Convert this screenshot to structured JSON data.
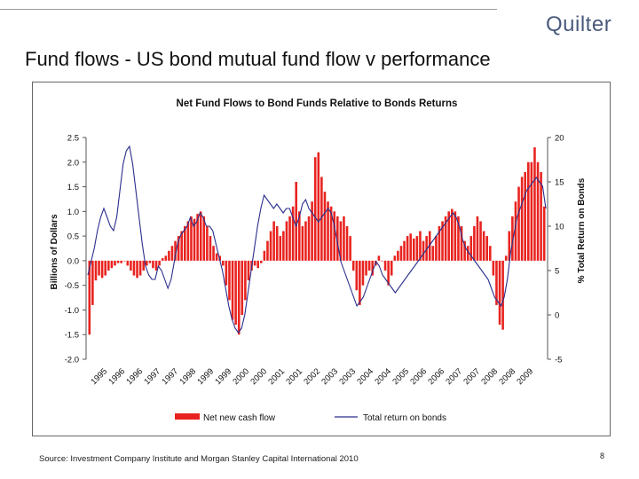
{
  "brand": {
    "name": "Quilter"
  },
  "slide": {
    "title": "Fund flows - US bond mutual fund flow v performance",
    "source": "Source: Investment Company Institute and Morgan Stanley Capital International 2010",
    "page_number": "8"
  },
  "colors": {
    "bars": "#e8231f",
    "line": "#2b2f8c"
  },
  "chart_data": {
    "type": "bar+line",
    "title": "Net Fund Flows to Bond Funds Relative to Bonds Returns",
    "ylabel_left": "Billions of Dollars",
    "ylabel_right": "% Total Return on Bonds",
    "ylim_left": [
      -2.0,
      2.5
    ],
    "ylim_right": [
      -5,
      20
    ],
    "yticks_left": [
      "2.5",
      "2.0",
      "1.5",
      "1.0",
      "0.5",
      "0.0",
      "-0.5",
      "-1.0",
      "-1.5",
      "-2.0"
    ],
    "yticks_right": [
      "20",
      "15",
      "10",
      "5",
      "0",
      "-5"
    ],
    "xtick_labels": [
      "1995",
      "1996",
      "1996",
      "1997",
      "1997",
      "1998",
      "1999",
      "1999",
      "2000",
      "2000",
      "2001",
      "2001",
      "2002",
      "2003",
      "2003",
      "2004",
      "2004",
      "2005",
      "2006",
      "2006",
      "2007",
      "2007",
      "2008",
      "2008",
      "2009"
    ],
    "grid": false,
    "legend_position": "bottom",
    "series": [
      {
        "name": "Net new cash flow",
        "type": "bar",
        "axis": "left",
        "values": [
          -1.5,
          -0.9,
          -0.4,
          -0.3,
          -0.35,
          -0.3,
          -0.2,
          -0.15,
          -0.1,
          -0.05,
          -0.05,
          0.0,
          -0.1,
          -0.2,
          -0.3,
          -0.35,
          -0.3,
          -0.2,
          -0.1,
          -0.05,
          -0.15,
          -0.2,
          -0.1,
          0.05,
          0.1,
          0.2,
          0.3,
          0.4,
          0.5,
          0.6,
          0.7,
          0.8,
          0.9,
          0.85,
          0.95,
          1.0,
          0.9,
          0.7,
          0.5,
          0.3,
          0.15,
          0.1,
          -0.1,
          -0.5,
          -0.8,
          -1.2,
          -1.3,
          -1.5,
          -1.1,
          -0.8,
          -0.4,
          -0.2,
          -0.1,
          -0.15,
          -0.05,
          0.2,
          0.4,
          0.6,
          0.8,
          0.7,
          0.5,
          0.6,
          0.8,
          0.9,
          1.1,
          1.6,
          1.0,
          0.7,
          0.8,
          0.9,
          1.2,
          2.1,
          2.2,
          1.7,
          1.4,
          1.2,
          1.1,
          1.0,
          0.9,
          0.8,
          0.9,
          0.7,
          0.5,
          -0.2,
          -0.6,
          -0.9,
          -0.5,
          -0.3,
          -0.2,
          -0.3,
          -0.1,
          0.1,
          0.0,
          -0.2,
          -0.5,
          -0.3,
          0.1,
          0.2,
          0.3,
          0.4,
          0.5,
          0.55,
          0.45,
          0.5,
          0.6,
          0.4,
          0.5,
          0.6,
          0.3,
          0.5,
          0.7,
          0.8,
          0.9,
          1.0,
          1.05,
          1.0,
          0.9,
          0.7,
          0.4,
          0.3,
          0.5,
          0.7,
          0.9,
          0.8,
          0.6,
          0.5,
          0.3,
          -0.3,
          -0.9,
          -1.3,
          -1.4,
          0.1,
          0.6,
          0.9,
          1.2,
          1.5,
          1.7,
          1.8,
          2.0,
          2.0,
          2.3,
          2.0,
          1.8,
          1.1
        ]
      },
      {
        "name": "Total return on bonds",
        "type": "line",
        "axis": "right",
        "values": [
          4.5,
          6,
          7.5,
          9.5,
          11,
          12,
          11,
          10,
          9.5,
          11,
          14,
          17,
          18.5,
          19,
          17,
          14,
          11,
          8,
          5.5,
          4.5,
          4,
          4,
          5.5,
          5,
          4,
          3,
          4,
          6,
          8,
          9,
          9.5,
          10,
          11,
          10,
          10.5,
          11.5,
          11,
          10,
          10,
          9.5,
          8,
          6.5,
          5,
          3,
          1,
          -0.5,
          -1.5,
          -2,
          -1.5,
          0,
          2.5,
          5,
          7.5,
          10,
          12,
          13.5,
          13,
          12.5,
          12,
          12.5,
          12,
          11.5,
          12,
          12,
          11,
          10,
          11,
          12.5,
          13,
          12,
          11.5,
          11,
          10.5,
          11,
          11.5,
          12,
          11.5,
          10,
          8,
          6,
          5,
          4,
          3,
          2,
          1,
          1.5,
          2,
          3,
          4,
          5,
          6,
          5.5,
          4.5,
          4,
          3.5,
          3,
          2.5,
          3,
          3.5,
          4,
          4.5,
          5,
          5.5,
          6,
          6.5,
          7,
          7.5,
          8,
          8.5,
          9,
          9.5,
          10,
          10.5,
          11,
          11.5,
          11,
          10,
          8.5,
          7.5,
          7,
          6.5,
          6,
          5.5,
          5,
          4.5,
          4,
          3,
          2,
          1.5,
          1,
          2,
          4,
          7,
          9,
          11,
          12,
          13,
          14,
          14.5,
          15,
          15.5,
          15,
          14.5,
          12
        ]
      }
    ]
  }
}
